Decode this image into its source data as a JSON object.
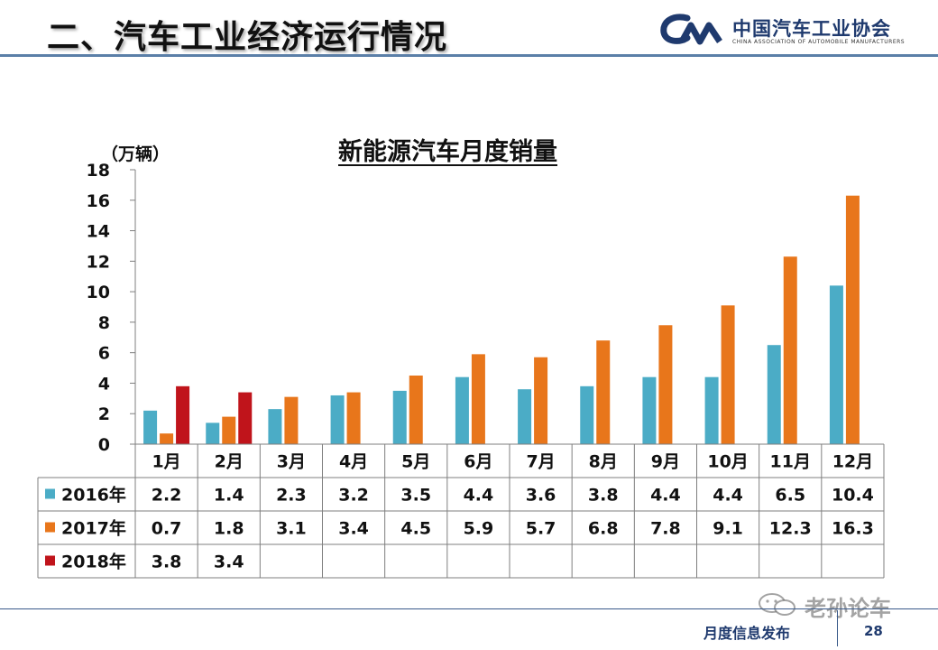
{
  "header": {
    "title": "二、汽车工业经济运行情况",
    "logo_cn": "中国汽车工业协会",
    "logo_en": "CHINA ASSOCIATION OF AUTOMOBILE MANUFACTURERS"
  },
  "footer": {
    "label": "月度信息发布",
    "page_number": "28",
    "watermark": "老孙论车"
  },
  "chart_data": {
    "type": "bar",
    "title": "新能源汽车月度销量",
    "ylabel": "（万辆）",
    "xlabel": "",
    "ylim": [
      0,
      18
    ],
    "yticks": [
      0,
      2,
      4,
      6,
      8,
      10,
      12,
      14,
      16,
      18
    ],
    "grid": false,
    "legend_placement": "data-table-left",
    "categories": [
      "1月",
      "2月",
      "3月",
      "4月",
      "5月",
      "6月",
      "7月",
      "8月",
      "9月",
      "10月",
      "11月",
      "12月"
    ],
    "series": [
      {
        "name": "2016年",
        "color": "#4bacc6",
        "values": [
          2.2,
          1.4,
          2.3,
          3.2,
          3.5,
          4.4,
          3.6,
          3.8,
          4.4,
          4.4,
          6.5,
          10.4
        ]
      },
      {
        "name": "2017年",
        "color": "#e8761b",
        "values": [
          0.7,
          1.8,
          3.1,
          3.4,
          4.5,
          5.9,
          5.7,
          6.8,
          7.8,
          9.1,
          12.3,
          16.3
        ]
      },
      {
        "name": "2018年",
        "color": "#c0141b",
        "values": [
          3.8,
          3.4,
          null,
          null,
          null,
          null,
          null,
          null,
          null,
          null,
          null,
          null
        ]
      }
    ]
  }
}
